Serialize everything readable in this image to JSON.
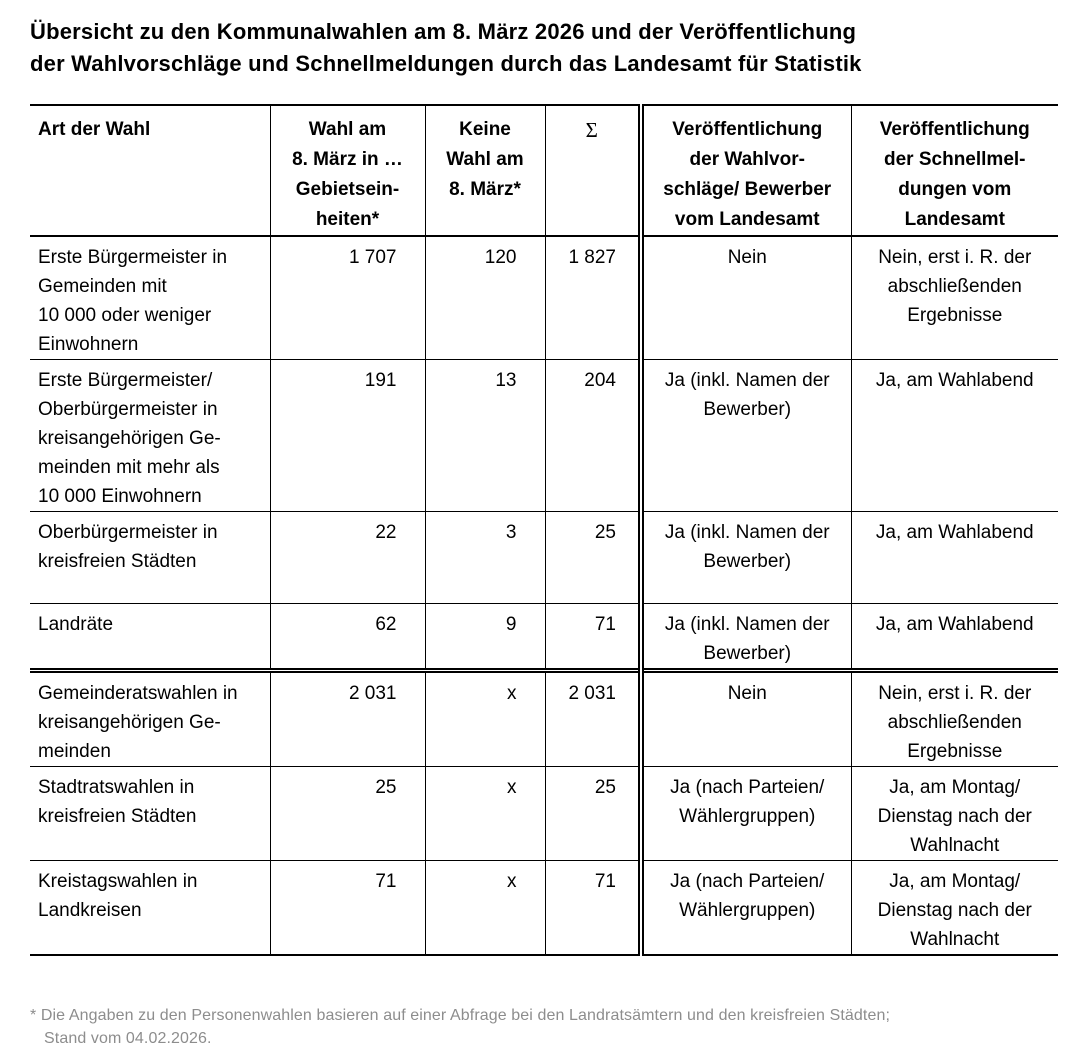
{
  "title": "Übersicht zu den Kommunalwahlen am 8. März 2026 und der Veröffentlichung\nder Wahlvorschläge und Schnellmeldungen durch das Landesamt für Statistik",
  "table": {
    "headers": {
      "art": "Art der Wahl",
      "wahl_am": "Wahl am\n8. März in …\nGebietsein-\nheiten*",
      "keine_wahl": "Keine\nWahl am\n8. März*",
      "summe": "Σ",
      "wahlvorschlaege": "Veröffentlichung\nder Wahlvor-\nschläge/ Bewerber\nvom Landesamt",
      "schnellmeldungen": "Veröffentlichung\nder Schnellmel-\ndungen vom\nLandesamt"
    },
    "rows": [
      {
        "art": "Erste Bürgermeister in\nGemeinden mit\n10 000 oder weniger\nEinwohnern",
        "wahl_am": "1 707",
        "keine_wahl": "120",
        "summe": "1 827",
        "wahlvorschlaege": "Nein",
        "schnellmeldungen": "Nein, erst i. R. der\nabschließenden\nErgebnisse"
      },
      {
        "art": "Erste Bürgermeister/\nOberbürgermeister in\nkreisangehörigen Ge-\nmeinden mit mehr als\n10 000 Einwohnern",
        "wahl_am": "191",
        "keine_wahl": "13",
        "summe": "204",
        "wahlvorschlaege": "Ja (inkl. Namen der\nBewerber)",
        "schnellmeldungen": "Ja, am Wahlabend"
      },
      {
        "art": "Oberbürgermeister in\nkreisfreien Städten",
        "wahl_am": "22",
        "keine_wahl": "3",
        "summe": "25",
        "wahlvorschlaege": "Ja (inkl. Namen der\nBewerber)",
        "schnellmeldungen": "Ja, am Wahlabend"
      },
      {
        "art": "Landräte",
        "wahl_am": "62",
        "keine_wahl": "9",
        "summe": "71",
        "wahlvorschlaege": "Ja (inkl. Namen der\nBewerber)",
        "schnellmeldungen": "Ja, am Wahlabend"
      },
      {
        "art": "Gemeinderatswahlen in\nkreisangehörigen Ge-\nmeinden",
        "wahl_am": "2 031",
        "keine_wahl": "x",
        "summe": "2 031",
        "wahlvorschlaege": "Nein",
        "schnellmeldungen": "Nein, erst i. R. der\nabschließenden\nErgebnisse"
      },
      {
        "art": "Stadtratswahlen in\nkreisfreien Städten",
        "wahl_am": "25",
        "keine_wahl": "x",
        "summe": "25",
        "wahlvorschlaege": "Ja (nach Parteien/\nWählergruppen)",
        "schnellmeldungen": "Ja, am Montag/\nDienstag nach der\nWahlnacht"
      },
      {
        "art": "Kreistagswahlen in\nLandkreisen",
        "wahl_am": "71",
        "keine_wahl": "x",
        "summe": "71",
        "wahlvorschlaege": "Ja (nach Parteien/\nWählergruppen)",
        "schnellmeldungen": "Ja, am Montag/\nDienstag nach der\nWahlnacht"
      }
    ]
  },
  "footnote": {
    "line1": "* Die Angaben zu den Personenwahlen basieren auf einer Abfrage bei den Landratsämtern und den kreisfreien Städten;",
    "line2": "Stand vom 04.02.2026."
  }
}
